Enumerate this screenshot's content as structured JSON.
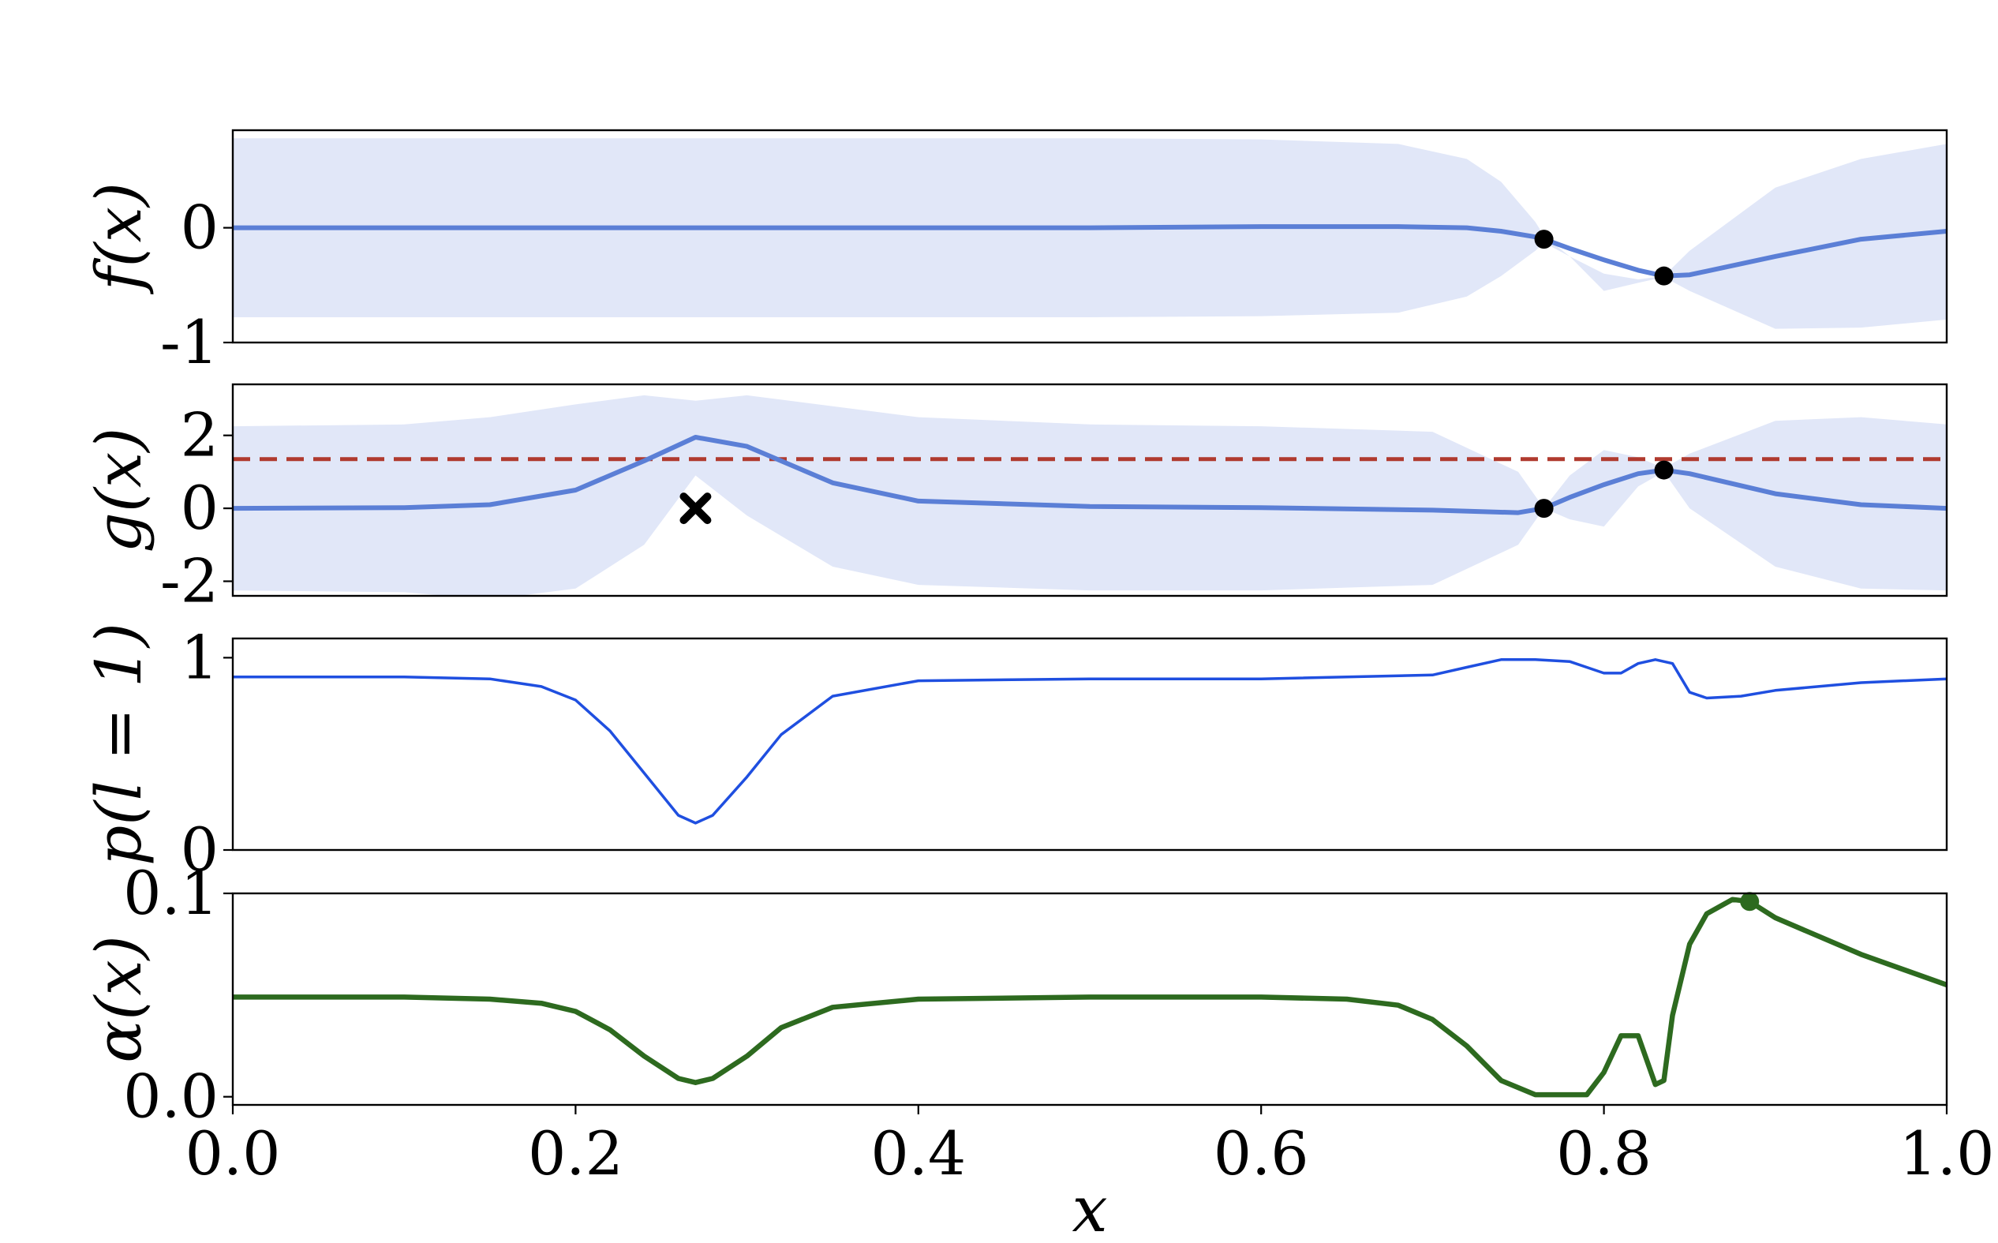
{
  "chart_data": [
    {
      "type": "line",
      "ylabel": "f(x)",
      "ylim": [
        -1,
        0.85
      ],
      "yticks": [
        0,
        -1
      ],
      "ytick_labels": [
        "0",
        "-1"
      ],
      "x": [
        0.0,
        0.1,
        0.2,
        0.3,
        0.4,
        0.5,
        0.6,
        0.68,
        0.72,
        0.74,
        0.76,
        0.765,
        0.78,
        0.8,
        0.82,
        0.835,
        0.85,
        0.9,
        0.95,
        1.0
      ],
      "series": [
        {
          "role": "mean",
          "color": "#5b7fd6",
          "values": [
            0.0,
            0.0,
            0.0,
            0.0,
            0.0,
            0.0,
            0.01,
            0.01,
            0.0,
            -0.03,
            -0.08,
            -0.1,
            -0.18,
            -0.28,
            -0.37,
            -0.42,
            -0.41,
            -0.25,
            -0.1,
            -0.03
          ]
        },
        {
          "role": "upper",
          "values": [
            0.78,
            0.78,
            0.78,
            0.78,
            0.78,
            0.78,
            0.77,
            0.73,
            0.6,
            0.4,
            0.05,
            -0.07,
            -0.25,
            -0.4,
            -0.45,
            -0.42,
            -0.2,
            0.35,
            0.6,
            0.73
          ]
        },
        {
          "role": "lower",
          "values": [
            -0.78,
            -0.78,
            -0.78,
            -0.78,
            -0.78,
            -0.78,
            -0.77,
            -0.74,
            -0.6,
            -0.42,
            -0.2,
            -0.13,
            -0.25,
            -0.55,
            -0.48,
            -0.43,
            -0.55,
            -0.88,
            -0.87,
            -0.8
          ]
        }
      ],
      "band_color": "#e1e7f8",
      "points": [
        {
          "x": 0.765,
          "y": -0.1,
          "marker": "dot",
          "color": "#000000"
        },
        {
          "x": 0.835,
          "y": -0.42,
          "marker": "dot",
          "color": "#000000"
        }
      ]
    },
    {
      "type": "line",
      "ylabel": "g(x)",
      "ylim": [
        -2.4,
        3.4
      ],
      "yticks": [
        2,
        0,
        -2
      ],
      "ytick_labels": [
        "2",
        "0",
        "-2"
      ],
      "x": [
        0.0,
        0.1,
        0.15,
        0.2,
        0.24,
        0.27,
        0.3,
        0.35,
        0.4,
        0.5,
        0.6,
        0.7,
        0.75,
        0.765,
        0.78,
        0.8,
        0.82,
        0.835,
        0.85,
        0.9,
        0.95,
        1.0
      ],
      "series": [
        {
          "role": "mean",
          "color": "#5b7fd6",
          "values": [
            0.0,
            0.02,
            0.1,
            0.5,
            1.3,
            1.95,
            1.7,
            0.7,
            0.2,
            0.05,
            0.02,
            -0.05,
            -0.12,
            0.0,
            0.3,
            0.65,
            0.95,
            1.05,
            0.95,
            0.4,
            0.1,
            0.0
          ]
        },
        {
          "role": "upper",
          "values": [
            2.25,
            2.3,
            2.5,
            2.85,
            3.1,
            2.95,
            3.1,
            2.8,
            2.5,
            2.3,
            2.25,
            2.1,
            1.0,
            0.0,
            0.9,
            1.6,
            1.4,
            1.1,
            1.5,
            2.4,
            2.5,
            2.3
          ]
        },
        {
          "role": "lower",
          "values": [
            -2.25,
            -2.3,
            -2.5,
            -2.2,
            -1.0,
            0.9,
            -0.2,
            -1.6,
            -2.1,
            -2.25,
            -2.25,
            -2.1,
            -1.0,
            0.0,
            -0.3,
            -0.5,
            0.6,
            1.0,
            0.0,
            -1.6,
            -2.2,
            -2.25
          ]
        }
      ],
      "band_color": "#e1e7f8",
      "threshold": {
        "y": 1.35,
        "color": "#b03a2e",
        "style": "dashed"
      },
      "points": [
        {
          "x": 0.765,
          "y": 0.0,
          "marker": "dot",
          "color": "#000000"
        },
        {
          "x": 0.835,
          "y": 1.05,
          "marker": "dot",
          "color": "#000000"
        },
        {
          "x": 0.27,
          "y": 0.0,
          "marker": "cross",
          "color": "#000000"
        }
      ]
    },
    {
      "type": "line",
      "ylabel": "p(l = 1)",
      "ylim": [
        0,
        1.1
      ],
      "yticks": [
        1,
        0
      ],
      "ytick_labels": [
        "1",
        "0"
      ],
      "x": [
        0.0,
        0.1,
        0.15,
        0.18,
        0.2,
        0.22,
        0.24,
        0.26,
        0.27,
        0.28,
        0.3,
        0.32,
        0.35,
        0.4,
        0.5,
        0.6,
        0.7,
        0.72,
        0.74,
        0.76,
        0.78,
        0.8,
        0.81,
        0.82,
        0.83,
        0.84,
        0.85,
        0.86,
        0.88,
        0.9,
        0.95,
        1.0
      ],
      "series": [
        {
          "role": "mean",
          "color": "#1f4fe0",
          "values": [
            0.9,
            0.9,
            0.89,
            0.85,
            0.78,
            0.62,
            0.4,
            0.18,
            0.14,
            0.18,
            0.38,
            0.6,
            0.8,
            0.88,
            0.89,
            0.89,
            0.91,
            0.95,
            0.99,
            0.99,
            0.98,
            0.92,
            0.92,
            0.97,
            0.99,
            0.97,
            0.82,
            0.79,
            0.8,
            0.83,
            0.87,
            0.89
          ]
        }
      ]
    },
    {
      "type": "line",
      "ylabel": "α(x)",
      "xlabel": "x",
      "xlim": [
        0.0,
        1.0
      ],
      "xticks": [
        0.0,
        0.2,
        0.4,
        0.6,
        0.8,
        1.0
      ],
      "xtick_labels": [
        "0.0",
        "0.2",
        "0.4",
        "0.6",
        "0.8",
        "1.0"
      ],
      "ylim": [
        -0.004,
        0.1
      ],
      "yticks": [
        0.1,
        0.0
      ],
      "ytick_labels": [
        "0.1",
        "0.0"
      ],
      "x": [
        0.0,
        0.1,
        0.15,
        0.18,
        0.2,
        0.22,
        0.24,
        0.26,
        0.27,
        0.28,
        0.3,
        0.32,
        0.35,
        0.4,
        0.5,
        0.6,
        0.65,
        0.68,
        0.7,
        0.72,
        0.74,
        0.76,
        0.78,
        0.79,
        0.8,
        0.81,
        0.82,
        0.83,
        0.835,
        0.84,
        0.85,
        0.86,
        0.875,
        0.885,
        0.9,
        0.95,
        1.0
      ],
      "series": [
        {
          "role": "acquisition",
          "color": "#2d6a1f",
          "values": [
            0.049,
            0.049,
            0.048,
            0.046,
            0.042,
            0.033,
            0.02,
            0.009,
            0.007,
            0.009,
            0.02,
            0.034,
            0.044,
            0.048,
            0.049,
            0.049,
            0.048,
            0.045,
            0.038,
            0.025,
            0.008,
            0.001,
            0.001,
            0.001,
            0.012,
            0.03,
            0.03,
            0.006,
            0.008,
            0.04,
            0.075,
            0.09,
            0.097,
            0.096,
            0.088,
            0.07,
            0.055
          ]
        }
      ],
      "points": [
        {
          "x": 0.885,
          "y": 0.096,
          "marker": "dot",
          "color": "#2d6a1f"
        }
      ]
    }
  ]
}
